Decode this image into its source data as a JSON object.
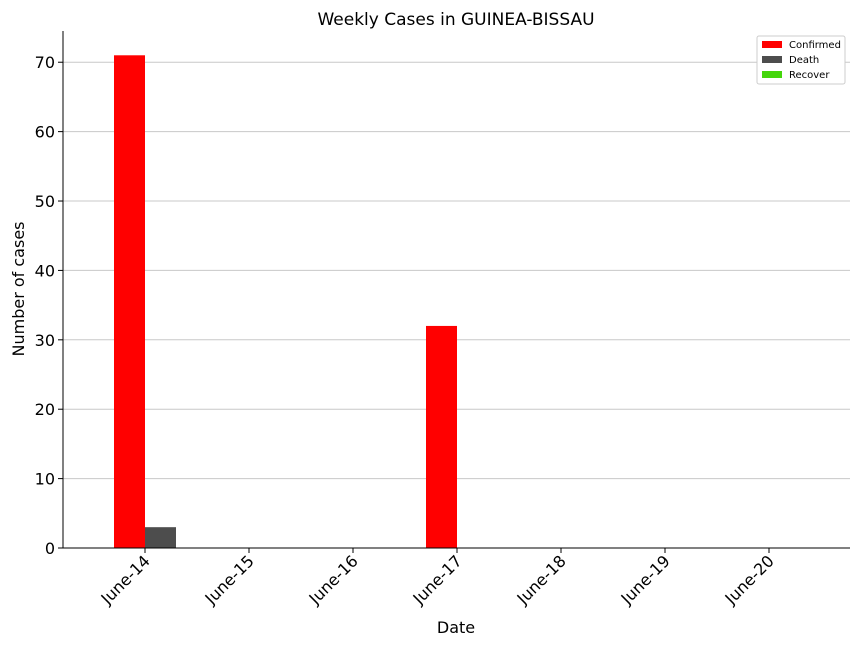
{
  "chart_data": {
    "type": "bar",
    "title": "Weekly Cases in GUINEA-BISSAU",
    "xlabel": "Date",
    "ylabel": "Number of cases",
    "categories": [
      "June-14",
      "June-15",
      "June-16",
      "June-17",
      "June-18",
      "June-19",
      "June-20"
    ],
    "series": [
      {
        "name": "Confirmed",
        "color": "#ff0000",
        "values": [
          71,
          0,
          0,
          32,
          0,
          0,
          0
        ]
      },
      {
        "name": "Death",
        "color": "#4d4d4d",
        "values": [
          3,
          0,
          0,
          0,
          0,
          0,
          0
        ]
      },
      {
        "name": "Recover",
        "color": "#44d60b",
        "values": [
          0,
          0,
          0,
          0,
          0,
          0,
          0
        ]
      }
    ],
    "ylim": [
      0,
      74.5
    ],
    "yticks": [
      0,
      10,
      20,
      30,
      40,
      50,
      60,
      70
    ],
    "grid": "horizontal",
    "legend_position": "top-right"
  }
}
